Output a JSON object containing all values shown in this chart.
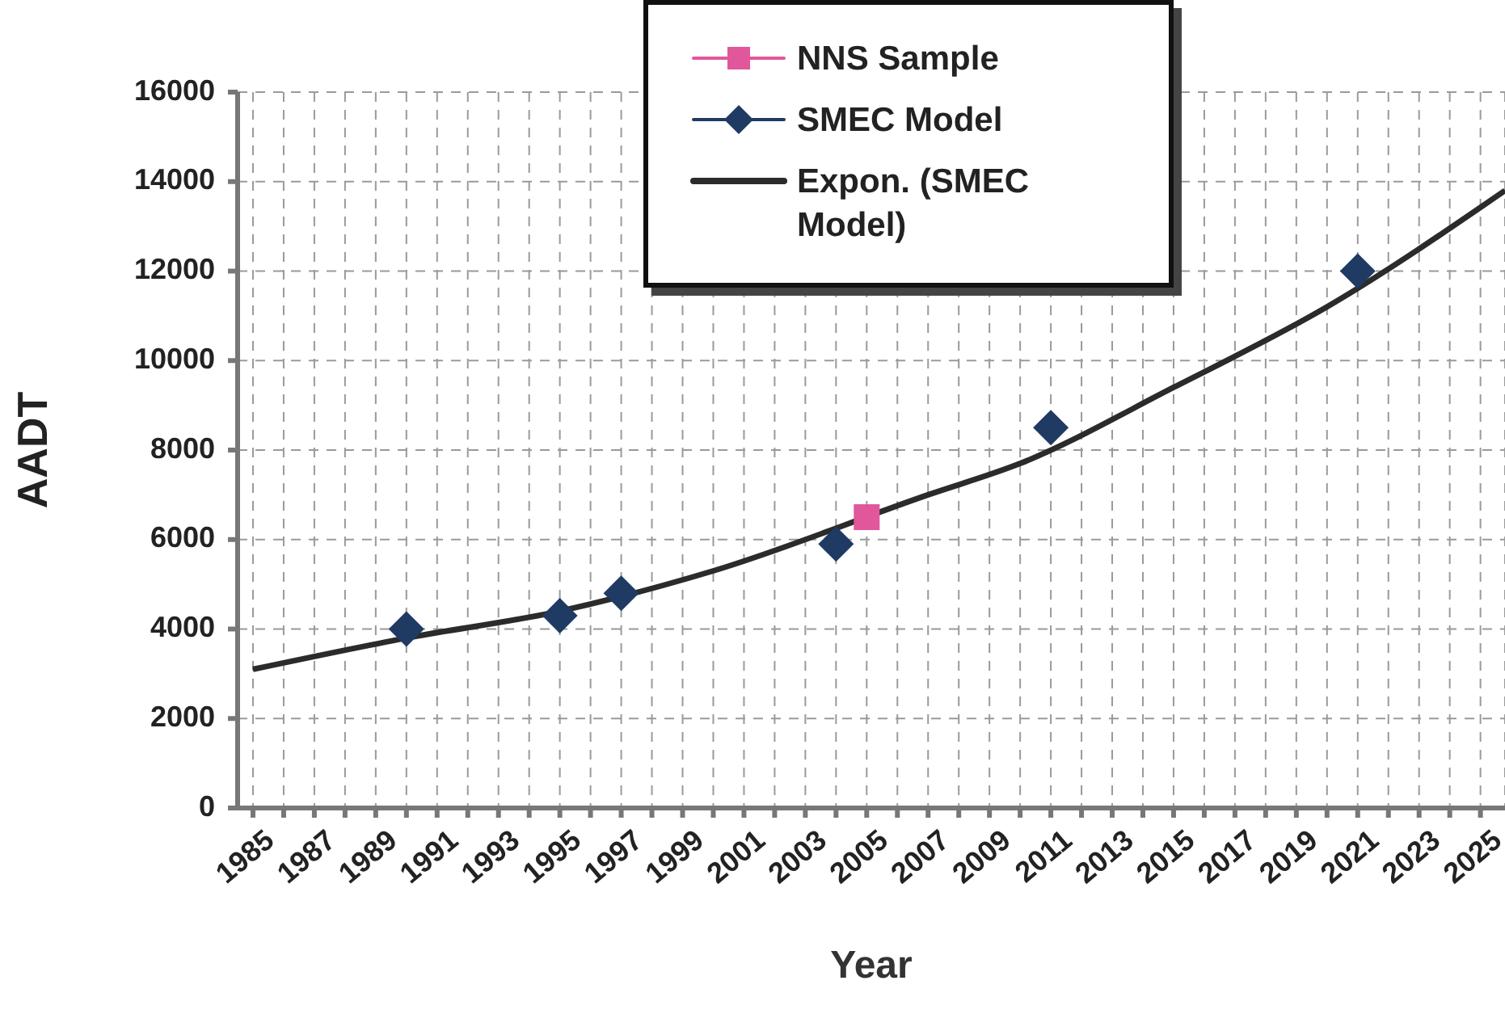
{
  "chart_data": {
    "type": "scatter",
    "xlabel": "Year",
    "ylabel": "AADT",
    "xlim": [
      1984.5,
      2025.8
    ],
    "ylim": [
      0,
      16000
    ],
    "xticks": [
      1985,
      {
        "value": 1986,
        "label": null
      },
      1987,
      {
        "value": 1988,
        "label": null
      },
      1989,
      {
        "value": 1990,
        "label": null
      },
      1991,
      {
        "value": 1992,
        "label": null
      },
      1993,
      {
        "value": 1994,
        "label": null
      },
      1995,
      {
        "value": 1996,
        "label": null
      },
      1997,
      {
        "value": 1998,
        "label": null
      },
      1999,
      {
        "value": 2000,
        "label": null
      },
      2001,
      {
        "value": 2002,
        "label": null
      },
      2003,
      {
        "value": 2004,
        "label": null
      },
      2005,
      {
        "value": 2006,
        "label": null
      },
      2007,
      {
        "value": 2008,
        "label": null
      },
      2009,
      {
        "value": 2010,
        "label": null
      },
      2011,
      {
        "value": 2012,
        "label": null
      },
      2013,
      {
        "value": 2014,
        "label": null
      },
      2015,
      {
        "value": 2016,
        "label": null
      },
      2017,
      {
        "value": 2018,
        "label": null
      },
      2019,
      {
        "value": 2020,
        "label": null
      },
      2021,
      {
        "value": 2022,
        "label": null
      },
      2023,
      {
        "value": 2024,
        "label": null
      },
      2025
    ],
    "yticks": [
      0,
      2000,
      4000,
      6000,
      8000,
      10000,
      12000,
      14000,
      16000
    ],
    "grid": true,
    "legend": "top",
    "series": [
      {
        "name": "NNS Sample",
        "marker": "square",
        "color": "#e0579b",
        "x": [
          2005
        ],
        "values": [
          6500
        ]
      },
      {
        "name": "SMEC Model",
        "marker": "diamond",
        "color": "#1f3a63",
        "x": [
          1990,
          1995,
          1997,
          2004,
          2011,
          2021
        ],
        "values": [
          4000,
          4300,
          4800,
          5900,
          8500,
          12000
        ]
      },
      {
        "name": "Expon. (SMEC Model)",
        "type": "line",
        "marker": "none",
        "color": "#2b2b2b",
        "x": [
          1985,
          1990,
          1995,
          2000,
          2007,
          2010,
          2015,
          2020,
          2025.8
        ],
        "values": [
          3100,
          3800,
          4400,
          5300,
          7000,
          7700,
          9400,
          11200,
          13800
        ]
      }
    ]
  }
}
